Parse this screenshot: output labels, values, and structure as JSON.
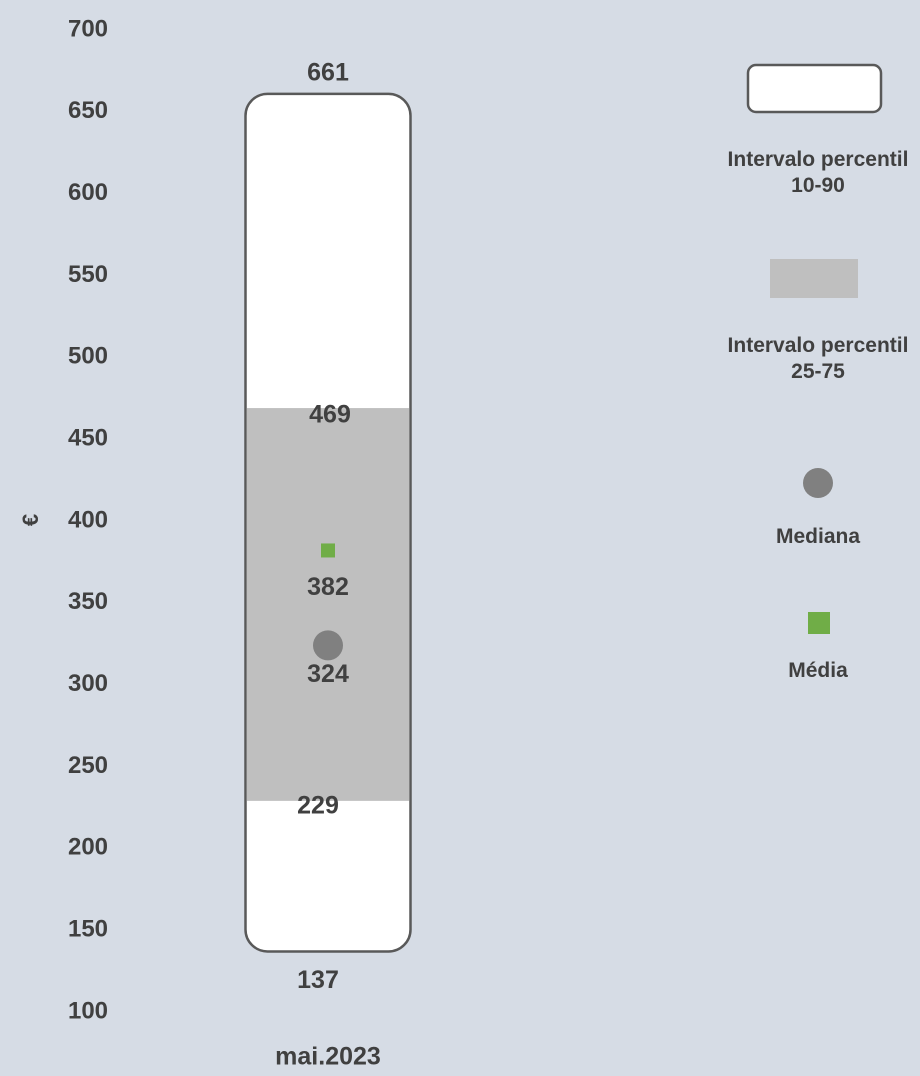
{
  "chart_data": {
    "type": "range",
    "categories": [
      "mai.2023"
    ],
    "y_label": "€",
    "ylim": [
      100,
      700
    ],
    "yticks": [
      100,
      150,
      200,
      250,
      300,
      350,
      400,
      450,
      500,
      550,
      600,
      650,
      700
    ],
    "series": [
      {
        "name": "Intervalo percentil 10-90",
        "color": "#ffffff",
        "low": [
          137
        ],
        "high": [
          661
        ]
      },
      {
        "name": "Intervalo percentil 25-75",
        "color": "#bfbfbf",
        "low": [
          229
        ],
        "high": [
          469
        ]
      },
      {
        "name": "Mediana",
        "color": "#808080",
        "values": [
          324
        ]
      },
      {
        "name": "Média",
        "color": "#70ad47",
        "values": [
          382
        ]
      }
    ]
  }
}
